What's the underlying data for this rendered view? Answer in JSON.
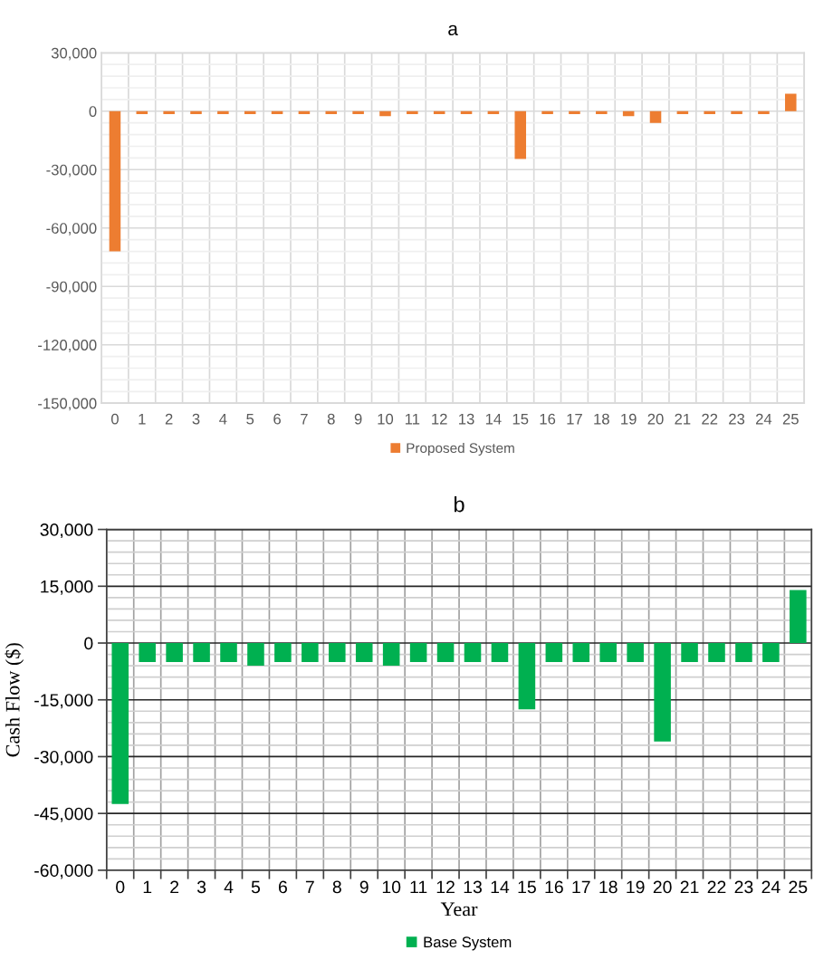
{
  "chart_data": [
    {
      "type": "bar",
      "title": "a",
      "categories": [
        "0",
        "1",
        "2",
        "3",
        "4",
        "5",
        "6",
        "7",
        "8",
        "9",
        "10",
        "11",
        "12",
        "13",
        "14",
        "15",
        "16",
        "17",
        "18",
        "19",
        "20",
        "21",
        "22",
        "23",
        "24",
        "25"
      ],
      "series": [
        {
          "name": "Proposed System",
          "color": "#ed7d31",
          "values": [
            -72000,
            -1500,
            -1500,
            -1500,
            -1500,
            -1500,
            -1500,
            -1500,
            -1500,
            -1500,
            -2500,
            -1500,
            -1500,
            -1500,
            -1500,
            -24500,
            -1500,
            -1500,
            -1500,
            -2500,
            -6000,
            -1500,
            -1500,
            -1500,
            -1500,
            9000
          ]
        }
      ],
      "ylim": [
        -150000,
        30000
      ],
      "yticks": [
        {
          "value": -150000,
          "label": "-150,000"
        },
        {
          "value": -144000,
          "label": null
        },
        {
          "value": -138000,
          "label": null
        },
        {
          "value": -132000,
          "label": null
        },
        {
          "value": -126000,
          "label": null
        },
        {
          "value": -120000,
          "label": "-120,000"
        },
        {
          "value": -114000,
          "label": null
        },
        {
          "value": -108000,
          "label": null
        },
        {
          "value": -102000,
          "label": null
        },
        {
          "value": -96000,
          "label": null
        },
        {
          "value": -90000,
          "label": "-90,000"
        },
        {
          "value": -84000,
          "label": null
        },
        {
          "value": -78000,
          "label": null
        },
        {
          "value": -72000,
          "label": null
        },
        {
          "value": -66000,
          "label": null
        },
        {
          "value": -60000,
          "label": "-60,000"
        },
        {
          "value": -54000,
          "label": null
        },
        {
          "value": -48000,
          "label": null
        },
        {
          "value": -42000,
          "label": null
        },
        {
          "value": -36000,
          "label": null
        },
        {
          "value": -30000,
          "label": "-30,000"
        },
        {
          "value": -24000,
          "label": null
        },
        {
          "value": -18000,
          "label": null
        },
        {
          "value": -12000,
          "label": null
        },
        {
          "value": -6000,
          "label": null
        },
        0,
        {
          "value": 6000,
          "label": null
        },
        {
          "value": 12000,
          "label": null
        },
        {
          "value": 18000,
          "label": null
        },
        {
          "value": 24000,
          "label": null
        },
        {
          "value": 30000,
          "label": "30,000"
        }
      ],
      "grid": true,
      "legend": "bottom"
    },
    {
      "type": "bar",
      "title": "b",
      "xlabel": "Year",
      "ylabel": "Cash Flow ($)",
      "categories": [
        "0",
        "1",
        "2",
        "3",
        "4",
        "5",
        "6",
        "7",
        "8",
        "9",
        "10",
        "11",
        "12",
        "13",
        "14",
        "15",
        "16",
        "17",
        "18",
        "19",
        "20",
        "21",
        "22",
        "23",
        "24",
        "25"
      ],
      "series": [
        {
          "name": "Base System",
          "color": "#00b050",
          "values": [
            -42500,
            -5000,
            -5000,
            -5000,
            -5000,
            -6000,
            -5000,
            -5000,
            -5000,
            -5000,
            -6000,
            -5000,
            -5000,
            -5000,
            -5000,
            -17500,
            -5000,
            -5000,
            -5000,
            -5000,
            -26000,
            -5000,
            -5000,
            -5000,
            -5000,
            14000
          ]
        }
      ],
      "ylim": [
        -60000,
        30000
      ],
      "yticks": [
        {
          "value": -60000,
          "label": "-60,000"
        },
        {
          "value": -57000,
          "label": null
        },
        {
          "value": -54000,
          "label": null
        },
        {
          "value": -51000,
          "label": null
        },
        {
          "value": -48000,
          "label": null
        },
        {
          "value": -45000,
          "label": "-45,000"
        },
        {
          "value": -42000,
          "label": null
        },
        {
          "value": -39000,
          "label": null
        },
        {
          "value": -36000,
          "label": null
        },
        {
          "value": -33000,
          "label": null
        },
        {
          "value": -30000,
          "label": "-30,000"
        },
        {
          "value": -27000,
          "label": null
        },
        {
          "value": -24000,
          "label": null
        },
        {
          "value": -21000,
          "label": null
        },
        {
          "value": -18000,
          "label": null
        },
        {
          "value": -15000,
          "label": "-15,000"
        },
        {
          "value": -12000,
          "label": null
        },
        {
          "value": -9000,
          "label": null
        },
        {
          "value": -6000,
          "label": null
        },
        {
          "value": -3000,
          "label": null
        },
        0,
        {
          "value": 3000,
          "label": null
        },
        {
          "value": 6000,
          "label": null
        },
        {
          "value": 9000,
          "label": null
        },
        {
          "value": 12000,
          "label": null
        },
        {
          "value": 15000,
          "label": "15,000"
        },
        {
          "value": 18000,
          "label": null
        },
        {
          "value": 21000,
          "label": null
        },
        {
          "value": 24000,
          "label": null
        },
        {
          "value": 27000,
          "label": null
        },
        {
          "value": 30000,
          "label": "30,000"
        }
      ],
      "grid": true,
      "legend": "bottom"
    }
  ]
}
